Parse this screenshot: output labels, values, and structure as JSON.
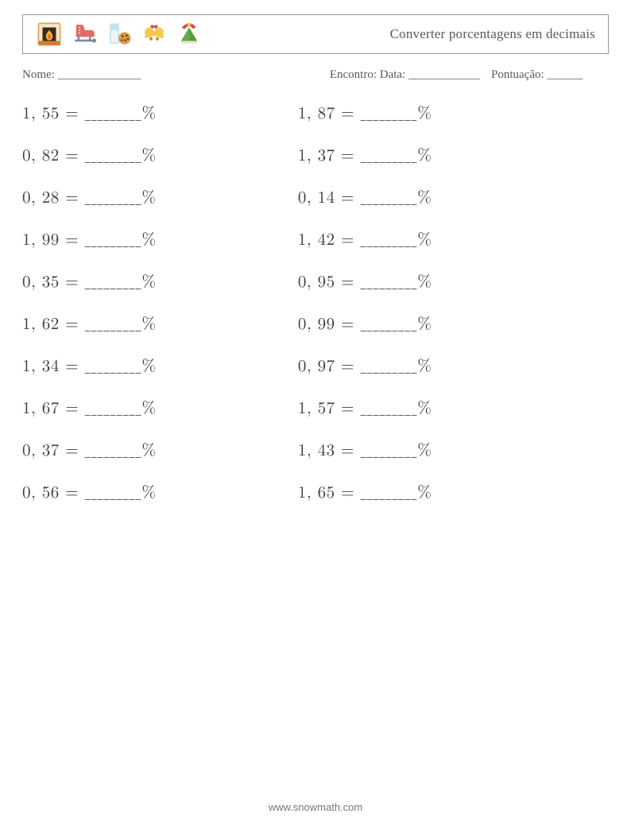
{
  "header": {
    "title": "Converter porcentagens em decimais"
  },
  "meta": {
    "name_label": "Nome: ______________",
    "encontro_label": "Encontro: Data: ____________",
    "score_label": "Pontuação: ______"
  },
  "answer_template": {
    "equals": " = ",
    "blank": "_________",
    "percent": "%"
  },
  "problems_left": [
    "1, 55",
    "0, 82",
    "0, 28",
    "1, 99",
    "0, 35",
    "1, 62",
    "1, 34",
    "1, 67",
    "0, 37",
    "0, 56"
  ],
  "problems_right": [
    "1, 87",
    "1, 37",
    "0, 14",
    "1, 42",
    "0, 95",
    "0, 99",
    "0, 97",
    "1, 57",
    "1, 43",
    "1, 65"
  ],
  "footer": {
    "text": "www.snowmath.com"
  },
  "icons": {
    "fireplace": {
      "frame": "#e0a94e",
      "brick": "#d27a3a",
      "flame_out": "#f5b83d",
      "flame_in": "#ef6a2f"
    },
    "skate": {
      "boot": "#e06a66",
      "blade": "#7f8aa0"
    },
    "cookie": {
      "glass": "#bfe6ef",
      "milk": "#f2f2f2",
      "cookie": "#d89a4b",
      "chip": "#5a3a1f"
    },
    "bells": {
      "body": "#f3c94c",
      "clapper": "#c9922d",
      "bow": "#d64b4b"
    },
    "tree": {
      "hat": "#d64b4b",
      "green": "#6aa84f",
      "star": "#f3c94c"
    }
  }
}
